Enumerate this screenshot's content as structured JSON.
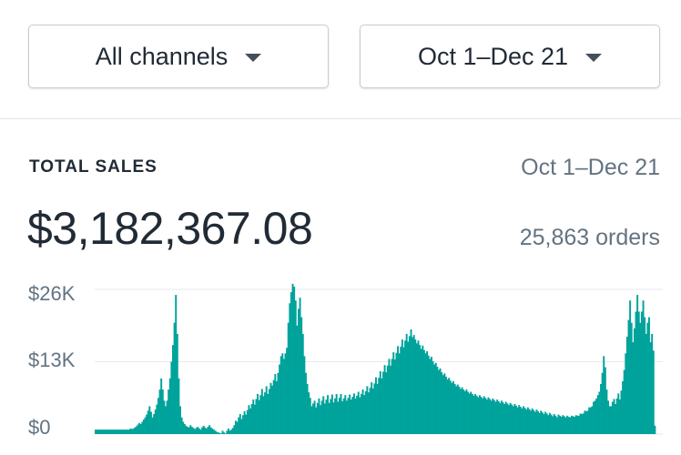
{
  "filters": {
    "channel": "All channels",
    "date_range": "Oct 1–Dec 21"
  },
  "summary": {
    "title": "TOTAL SALES",
    "date_range": "Oct 1–Dec 21",
    "total": "$3,182,367.08",
    "orders": "25,863 orders"
  },
  "colors": {
    "accent": "#00a39b",
    "grid": "#e6e9ec"
  },
  "chart_data": {
    "type": "bar",
    "ylim": [
      0,
      26000
    ],
    "yticks": [
      "$0",
      "$13K",
      "$26K"
    ],
    "grid": true,
    "x_start": "Oct 1",
    "x_end": "Dec 21",
    "values": [
      800,
      800,
      800,
      800,
      800,
      800,
      800,
      800,
      800,
      800,
      800,
      800,
      800,
      800,
      800,
      800,
      800,
      800,
      800,
      800,
      800,
      800,
      800,
      800,
      1000,
      900,
      1000,
      1200,
      1400,
      1700,
      2000,
      1800,
      2200,
      2600,
      3000,
      3500,
      4200,
      5000,
      4000,
      3000,
      3600,
      4400,
      5300,
      6500,
      8000,
      10000,
      8000,
      6000,
      5000,
      6000,
      8000,
      10000,
      13000,
      16000,
      20000,
      25000,
      18000,
      10000,
      5000,
      3000,
      2200,
      1800,
      1500,
      1300,
      1200,
      1600,
      1300,
      1100,
      900,
      1100,
      1300,
      1000,
      800,
      1200,
      1500,
      1200,
      1000,
      1300,
      1600,
      1200,
      1000,
      800,
      600,
      400,
      300,
      200,
      100,
      600,
      300,
      100,
      600,
      1000,
      600,
      800,
      1100,
      1600,
      2400,
      2200,
      3000,
      3600,
      2700,
      3400,
      4100,
      3500,
      4300,
      5200,
      4600,
      5400,
      6200,
      5300,
      6300,
      7200,
      6100,
      7000,
      8100,
      6800,
      7500,
      8600,
      7200,
      8100,
      9200,
      8700,
      9700,
      10800,
      9500,
      11000,
      12500,
      14000,
      14500,
      13500,
      14500,
      15500,
      20000,
      23500,
      25500,
      27000,
      26500,
      24000,
      19500,
      22500,
      24500,
      21000,
      18000,
      14000,
      11000,
      9000,
      7500,
      6500,
      5000,
      5500,
      6000,
      4800,
      5600,
      6400,
      5200,
      6000,
      6800,
      5500,
      6200,
      7000,
      5600,
      6300,
      7100,
      5700,
      6400,
      7200,
      5800,
      6500,
      7200,
      5900,
      6400,
      7000,
      6000,
      6500,
      7100,
      6200,
      6700,
      7300,
      6400,
      6900,
      7600,
      6600,
      7200,
      8000,
      7000,
      7700,
      8600,
      7500,
      8300,
      9300,
      8200,
      9100,
      10200,
      9000,
      10100,
      11300,
      10000,
      11200,
      12400,
      11100,
      12300,
      13500,
      12300,
      13500,
      14700,
      13400,
      14600,
      15800,
      14500,
      15700,
      17000,
      15600,
      16800,
      18000,
      16600,
      17600,
      18800,
      17400,
      17800,
      17000,
      16300,
      16800,
      16000,
      15300,
      15900,
      15100,
      14500,
      14900,
      14100,
      13500,
      13900,
      13100,
      12500,
      12800,
      12100,
      11500,
      11800,
      11100,
      10600,
      10900,
      10300,
      9800,
      10100,
      9600,
      9200,
      9500,
      9000,
      8600,
      8900,
      8500,
      8100,
      8400,
      8000,
      7700,
      8000,
      7600,
      7300,
      7600,
      7200,
      6900,
      7200,
      6900,
      6600,
      7000,
      6700,
      6400,
      6800,
      6500,
      6200,
      6600,
      6300,
      6000,
      6400,
      6100,
      5800,
      6200,
      5900,
      5600,
      6000,
      5700,
      5400,
      5800,
      5500,
      5200,
      5600,
      5300,
      5000,
      5400,
      5100,
      4800,
      5200,
      4900,
      4600,
      5000,
      4700,
      4400,
      4800,
      4500,
      4200,
      4600,
      4300,
      4000,
      4400,
      4100,
      3800,
      4200,
      3900,
      3600,
      4000,
      3700,
      3400,
      3800,
      3500,
      3200,
      3600,
      3300,
      3000,
      3500,
      3300,
      3100,
      3400,
      3200,
      3000,
      3300,
      3100,
      3000,
      3300,
      3200,
      3100,
      3400,
      3300,
      3300,
      3700,
      3600,
      3700,
      4200,
      4100,
      4200,
      4800,
      4800,
      5000,
      5800,
      6000,
      6400,
      7000,
      7600,
      9000,
      11000,
      14000,
      12000,
      8000,
      6000,
      5000,
      5000,
      5800,
      6300,
      5400,
      6400,
      7300,
      6200,
      7800,
      9500,
      11500,
      14500,
      17500,
      20500,
      24000,
      20000,
      16500,
      19000,
      22000,
      25000,
      22000,
      20000,
      22000,
      24000,
      21000,
      18000,
      20000,
      21000,
      16500,
      18000,
      15000,
      1500
    ]
  }
}
